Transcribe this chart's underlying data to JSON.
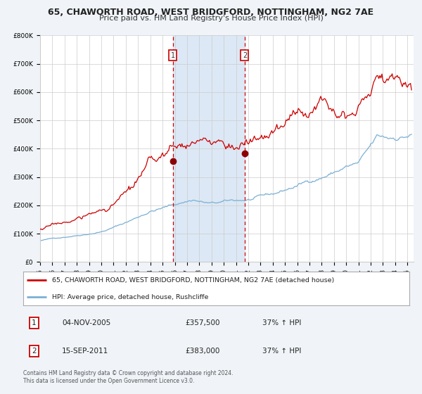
{
  "title_line1": "65, CHAWORTH ROAD, WEST BRIDGFORD, NOTTINGHAM, NG2 7AE",
  "title_line2": "Price paid vs. HM Land Registry's House Price Index (HPI)",
  "legend_label_red": "65, CHAWORTH ROAD, WEST BRIDGFORD, NOTTINGHAM, NG2 7AE (detached house)",
  "legend_label_blue": "HPI: Average price, detached house, Rushcliffe",
  "sale1_date": "04-NOV-2005",
  "sale1_price": "£357,500",
  "sale1_hpi": "37% ↑ HPI",
  "sale2_date": "15-SEP-2011",
  "sale2_price": "£383,000",
  "sale2_hpi": "37% ↑ HPI",
  "footer": "Contains HM Land Registry data © Crown copyright and database right 2024.\nThis data is licensed under the Open Government Licence v3.0.",
  "sale1_x": 2005.84,
  "sale2_x": 2011.71,
  "sale1_y": 357500,
  "sale2_y": 383000,
  "ylim": [
    0,
    800000
  ],
  "xlim_start": 1995.0,
  "xlim_end": 2025.5,
  "background_color": "#f0f4f8",
  "plot_bg_color": "#ffffff",
  "shade_color": "#dce8f5",
  "grid_color": "#cccccc",
  "red_line_color": "#cc0000",
  "blue_line_color": "#7ab0d4",
  "dashed_color": "#cc0000",
  "title_fontsize": 9,
  "subtitle_fontsize": 8
}
